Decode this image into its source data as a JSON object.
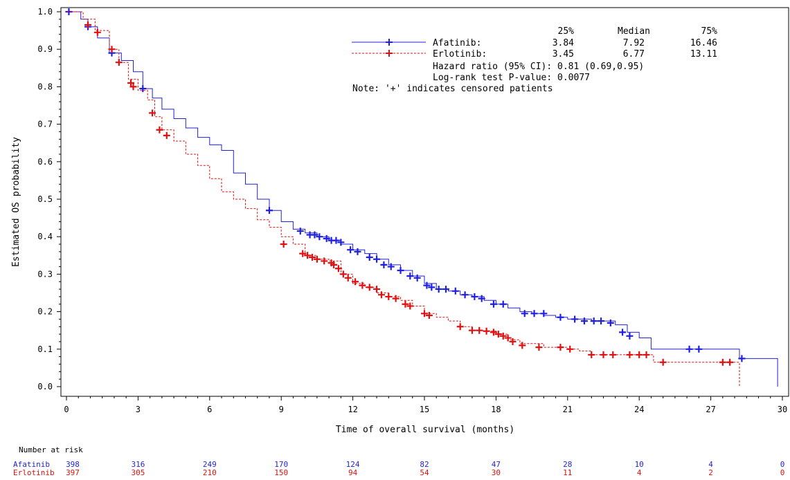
{
  "chart_data": {
    "type": "line",
    "subtype": "kaplan-meier",
    "xlabel": "Time of overall survival (months)",
    "ylabel": "Estimated OS probability",
    "xlim": [
      0,
      30
    ],
    "ylim": [
      0,
      1
    ],
    "x_ticks": [
      0,
      3,
      6,
      9,
      12,
      15,
      18,
      21,
      24,
      27,
      30
    ],
    "y_ticks": [
      0,
      0.1,
      0.2,
      0.3,
      0.4,
      0.5,
      0.6,
      0.7,
      0.8,
      0.9,
      1.0
    ],
    "y_tick_labels": [
      "0.0",
      "0.1",
      "0.2",
      "0.3",
      "0.4",
      "0.5",
      "0.6",
      "0.7",
      "0.8",
      "0.9",
      "1.0"
    ],
    "grid": false,
    "legend": {
      "position": "top-right",
      "header": [
        "25%",
        "Median",
        "75%"
      ],
      "rows": [
        {
          "label": "Afatinib:",
          "q25": "3.84",
          "median": "7.92",
          "q75": "16.46"
        },
        {
          "label": "Erlotinib:",
          "q25": "3.45",
          "median": "6.77",
          "q75": "13.11"
        }
      ],
      "notes": [
        "Hazard ratio (95% CI): 0.81 (0.69,0.95)",
        "Log-rank test P-value:   0.0077",
        "Note: '+' indicates censored patients"
      ]
    },
    "series": [
      {
        "name": "Afatinib",
        "color": "#1f1fe0",
        "style": "solid",
        "points": [
          [
            0,
            1.0
          ],
          [
            0.3,
            1.0
          ],
          [
            0.6,
            0.98
          ],
          [
            0.9,
            0.96
          ],
          [
            1.3,
            0.93
          ],
          [
            1.8,
            0.89
          ],
          [
            2.3,
            0.87
          ],
          [
            2.8,
            0.84
          ],
          [
            3.2,
            0.795
          ],
          [
            3.6,
            0.77
          ],
          [
            4.0,
            0.74
          ],
          [
            4.5,
            0.715
          ],
          [
            5.0,
            0.69
          ],
          [
            5.5,
            0.665
          ],
          [
            6.0,
            0.645
          ],
          [
            6.5,
            0.63
          ],
          [
            7.0,
            0.57
          ],
          [
            7.5,
            0.54
          ],
          [
            8.0,
            0.5
          ],
          [
            8.5,
            0.47
          ],
          [
            9.0,
            0.44
          ],
          [
            9.5,
            0.42
          ],
          [
            10.0,
            0.41
          ],
          [
            10.5,
            0.4
          ],
          [
            11.0,
            0.39
          ],
          [
            11.5,
            0.38
          ],
          [
            12.0,
            0.365
          ],
          [
            12.5,
            0.355
          ],
          [
            13.0,
            0.34
          ],
          [
            13.5,
            0.325
          ],
          [
            14.0,
            0.31
          ],
          [
            14.5,
            0.295
          ],
          [
            15.0,
            0.275
          ],
          [
            15.5,
            0.26
          ],
          [
            16.0,
            0.255
          ],
          [
            16.5,
            0.245
          ],
          [
            17.0,
            0.24
          ],
          [
            17.5,
            0.23
          ],
          [
            18.0,
            0.22
          ],
          [
            18.5,
            0.21
          ],
          [
            19.0,
            0.2
          ],
          [
            19.5,
            0.195
          ],
          [
            20.0,
            0.19
          ],
          [
            20.5,
            0.185
          ],
          [
            21.0,
            0.18
          ],
          [
            22.0,
            0.175
          ],
          [
            22.5,
            0.175
          ],
          [
            23.0,
            0.165
          ],
          [
            23.5,
            0.145
          ],
          [
            24.0,
            0.13
          ],
          [
            24.5,
            0.1
          ],
          [
            25.5,
            0.1
          ],
          [
            27.0,
            0.1
          ],
          [
            28.1,
            0.1
          ],
          [
            28.2,
            0.075
          ],
          [
            29.8,
            0.075
          ],
          [
            29.8,
            0.0
          ]
        ],
        "censored": [
          [
            0.1,
            1.0
          ],
          [
            0.9,
            0.96
          ],
          [
            1.9,
            0.89
          ],
          [
            3.2,
            0.795
          ],
          [
            8.5,
            0.47
          ],
          [
            9.8,
            0.415
          ],
          [
            10.2,
            0.405
          ],
          [
            10.4,
            0.405
          ],
          [
            10.6,
            0.4
          ],
          [
            10.9,
            0.395
          ],
          [
            11.1,
            0.39
          ],
          [
            11.3,
            0.39
          ],
          [
            11.5,
            0.385
          ],
          [
            11.9,
            0.365
          ],
          [
            12.2,
            0.36
          ],
          [
            12.7,
            0.345
          ],
          [
            13.0,
            0.34
          ],
          [
            13.3,
            0.325
          ],
          [
            13.6,
            0.32
          ],
          [
            14.0,
            0.31
          ],
          [
            14.4,
            0.295
          ],
          [
            14.7,
            0.29
          ],
          [
            15.1,
            0.27
          ],
          [
            15.3,
            0.265
          ],
          [
            15.6,
            0.26
          ],
          [
            15.9,
            0.26
          ],
          [
            16.3,
            0.255
          ],
          [
            16.7,
            0.245
          ],
          [
            17.1,
            0.24
          ],
          [
            17.4,
            0.235
          ],
          [
            17.9,
            0.22
          ],
          [
            18.3,
            0.22
          ],
          [
            19.2,
            0.195
          ],
          [
            19.6,
            0.195
          ],
          [
            20.0,
            0.195
          ],
          [
            20.7,
            0.185
          ],
          [
            21.3,
            0.18
          ],
          [
            21.7,
            0.175
          ],
          [
            22.1,
            0.175
          ],
          [
            22.4,
            0.175
          ],
          [
            22.8,
            0.17
          ],
          [
            23.3,
            0.145
          ],
          [
            23.6,
            0.135
          ],
          [
            26.1,
            0.1
          ],
          [
            26.5,
            0.1
          ],
          [
            28.3,
            0.075
          ]
        ]
      },
      {
        "name": "Erlotinib",
        "color": "#e01010",
        "style": "dashed",
        "points": [
          [
            0,
            1.0
          ],
          [
            0.3,
            1.0
          ],
          [
            0.7,
            0.98
          ],
          [
            1.2,
            0.95
          ],
          [
            1.8,
            0.9
          ],
          [
            2.2,
            0.865
          ],
          [
            2.6,
            0.82
          ],
          [
            3.0,
            0.79
          ],
          [
            3.4,
            0.765
          ],
          [
            3.7,
            0.72
          ],
          [
            4.0,
            0.685
          ],
          [
            4.5,
            0.655
          ],
          [
            5.0,
            0.62
          ],
          [
            5.5,
            0.59
          ],
          [
            6.0,
            0.555
          ],
          [
            6.5,
            0.52
          ],
          [
            7.0,
            0.5
          ],
          [
            7.5,
            0.475
          ],
          [
            8.0,
            0.445
          ],
          [
            8.5,
            0.425
          ],
          [
            9.0,
            0.4
          ],
          [
            9.5,
            0.38
          ],
          [
            10.0,
            0.35
          ],
          [
            10.5,
            0.34
          ],
          [
            11.0,
            0.335
          ],
          [
            11.5,
            0.3
          ],
          [
            12.0,
            0.275
          ],
          [
            12.5,
            0.265
          ],
          [
            13.0,
            0.25
          ],
          [
            13.5,
            0.24
          ],
          [
            14.0,
            0.23
          ],
          [
            14.5,
            0.215
          ],
          [
            15.0,
            0.195
          ],
          [
            15.5,
            0.185
          ],
          [
            16.0,
            0.175
          ],
          [
            16.5,
            0.16
          ],
          [
            17.0,
            0.15
          ],
          [
            17.5,
            0.148
          ],
          [
            18.0,
            0.14
          ],
          [
            18.5,
            0.125
          ],
          [
            19.0,
            0.115
          ],
          [
            20.0,
            0.105
          ],
          [
            21.0,
            0.1
          ],
          [
            21.5,
            0.095
          ],
          [
            22.0,
            0.085
          ],
          [
            23.0,
            0.085
          ],
          [
            24.0,
            0.085
          ],
          [
            24.5,
            0.085
          ],
          [
            24.6,
            0.065
          ],
          [
            27.6,
            0.065
          ],
          [
            28.0,
            0.065
          ],
          [
            28.2,
            0.065
          ],
          [
            28.2,
            0.0
          ]
        ],
        "censored": [
          [
            0.9,
            0.965
          ],
          [
            1.3,
            0.945
          ],
          [
            1.9,
            0.9
          ],
          [
            2.2,
            0.865
          ],
          [
            2.7,
            0.81
          ],
          [
            2.8,
            0.8
          ],
          [
            3.6,
            0.73
          ],
          [
            3.9,
            0.685
          ],
          [
            4.2,
            0.67
          ],
          [
            9.1,
            0.38
          ],
          [
            9.9,
            0.355
          ],
          [
            10.1,
            0.35
          ],
          [
            10.3,
            0.345
          ],
          [
            10.5,
            0.34
          ],
          [
            10.8,
            0.335
          ],
          [
            11.1,
            0.33
          ],
          [
            11.2,
            0.325
          ],
          [
            11.4,
            0.315
          ],
          [
            11.6,
            0.3
          ],
          [
            11.8,
            0.29
          ],
          [
            12.1,
            0.28
          ],
          [
            12.4,
            0.27
          ],
          [
            12.7,
            0.265
          ],
          [
            13.0,
            0.26
          ],
          [
            13.2,
            0.245
          ],
          [
            13.5,
            0.24
          ],
          [
            13.8,
            0.235
          ],
          [
            14.2,
            0.22
          ],
          [
            14.4,
            0.215
          ],
          [
            15.0,
            0.195
          ],
          [
            15.2,
            0.19
          ],
          [
            16.5,
            0.16
          ],
          [
            17.0,
            0.15
          ],
          [
            17.3,
            0.15
          ],
          [
            17.6,
            0.148
          ],
          [
            17.9,
            0.145
          ],
          [
            18.1,
            0.14
          ],
          [
            18.3,
            0.135
          ],
          [
            18.5,
            0.13
          ],
          [
            18.7,
            0.12
          ],
          [
            19.1,
            0.11
          ],
          [
            19.8,
            0.105
          ],
          [
            20.7,
            0.105
          ],
          [
            21.1,
            0.1
          ],
          [
            22.0,
            0.085
          ],
          [
            22.5,
            0.085
          ],
          [
            22.9,
            0.085
          ],
          [
            23.6,
            0.085
          ],
          [
            24.0,
            0.085
          ],
          [
            24.3,
            0.085
          ],
          [
            25.0,
            0.065
          ],
          [
            27.5,
            0.065
          ],
          [
            27.8,
            0.065
          ]
        ]
      }
    ],
    "number_at_risk": {
      "title": "Number at risk",
      "times": [
        0,
        3,
        6,
        9,
        12,
        15,
        18,
        21,
        24,
        27,
        30
      ],
      "rows": [
        {
          "label": "Afatinib",
          "color": "#1f1fe0",
          "counts": [
            "398",
            "316",
            "249",
            "170",
            "124",
            "82",
            "47",
            "28",
            "10",
            "4",
            "0"
          ]
        },
        {
          "label": "Erlotinib",
          "color": "#e01010",
          "counts": [
            "397",
            "305",
            "210",
            "150",
            "94",
            "54",
            "30",
            "11",
            "4",
            "2",
            "0"
          ]
        }
      ]
    }
  }
}
